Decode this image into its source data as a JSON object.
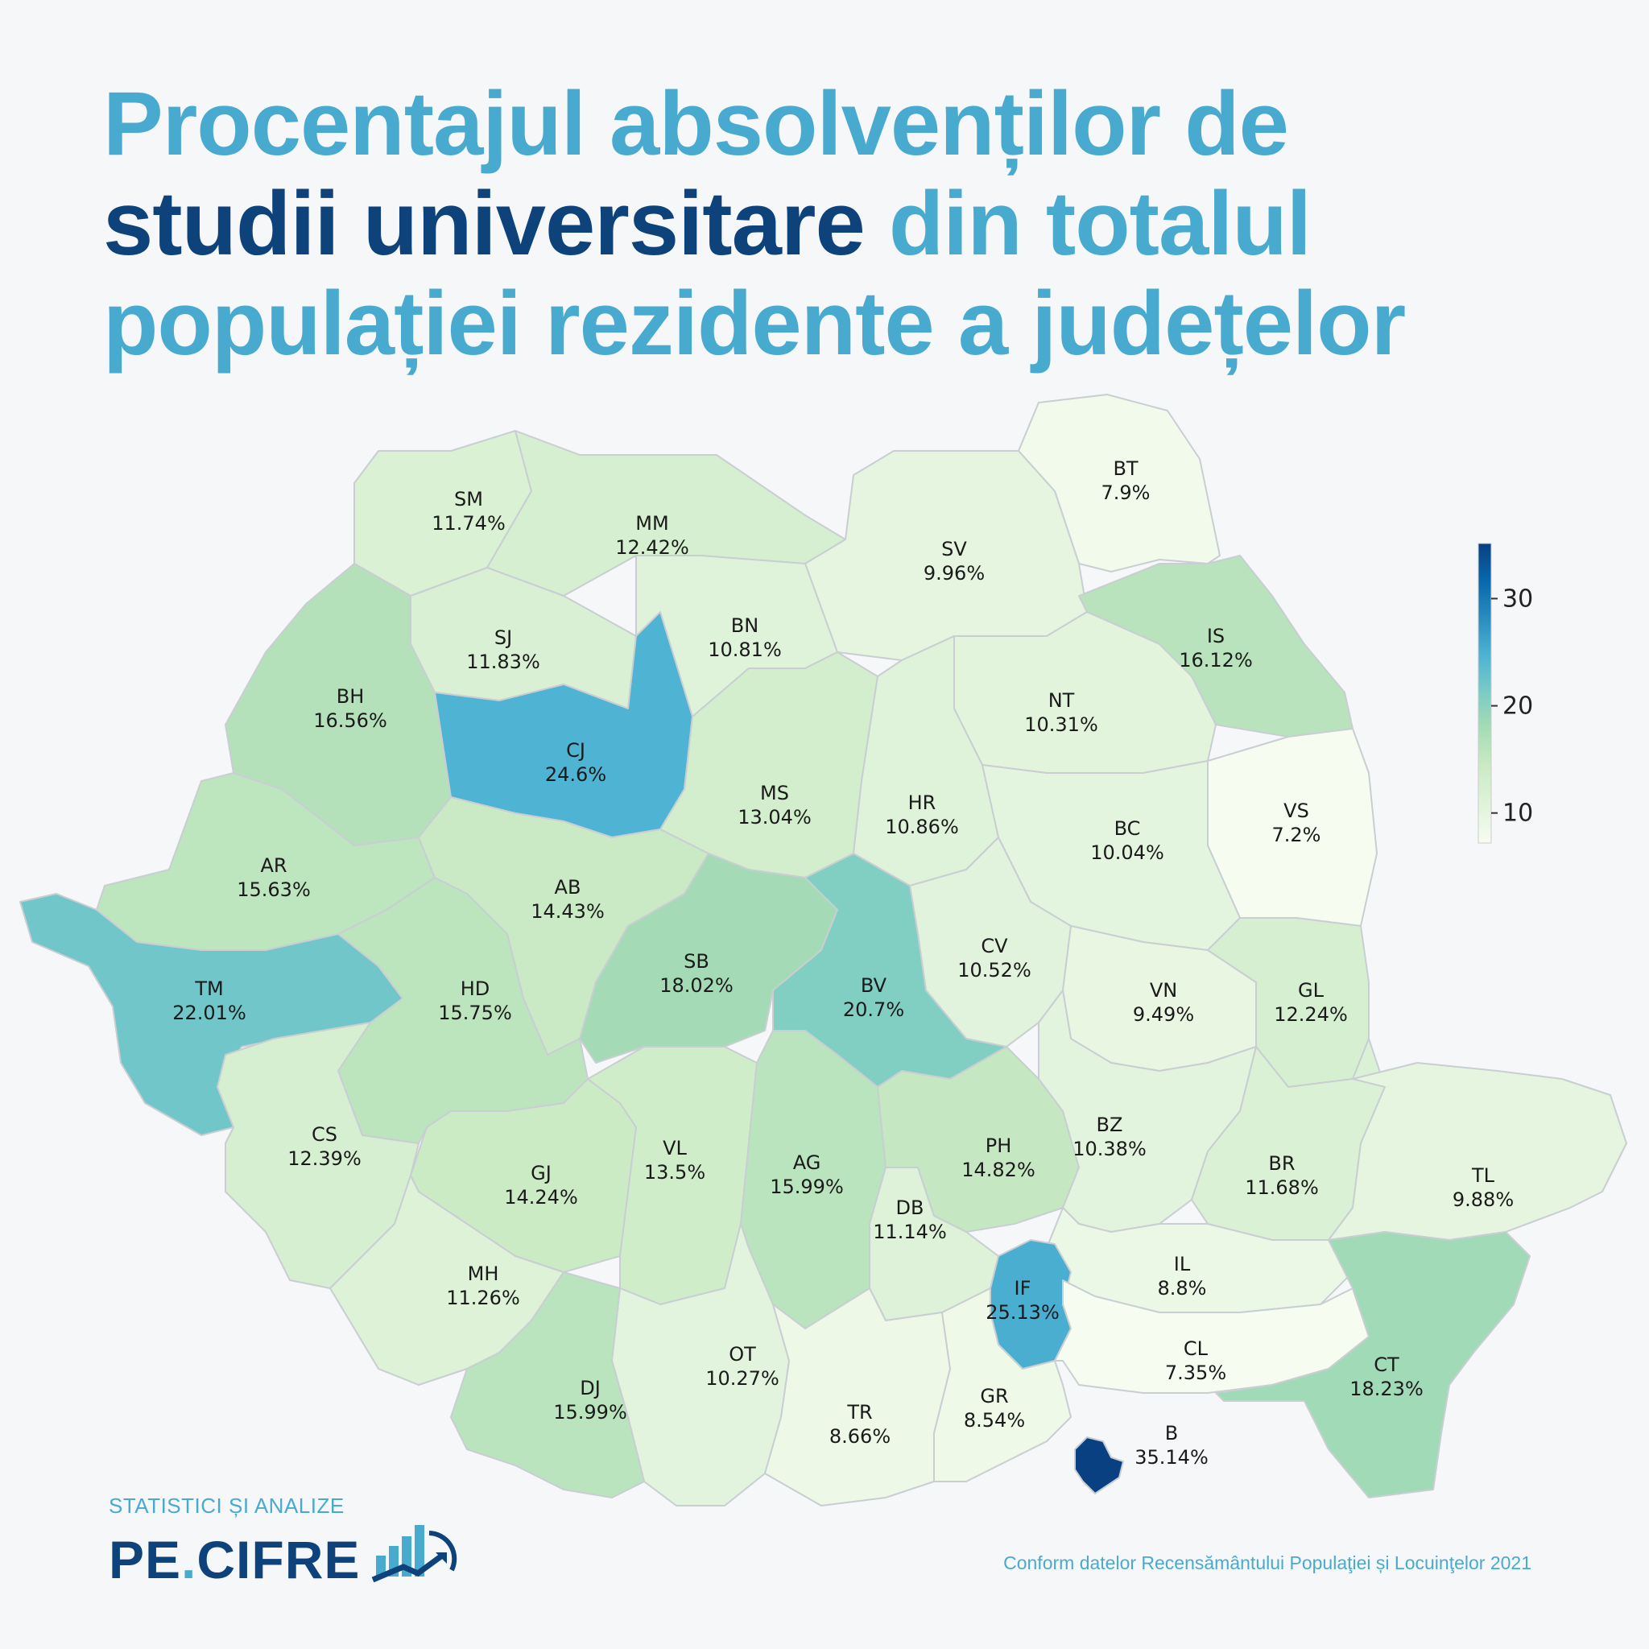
{
  "title": {
    "part1": "Procentajul absolvenților de",
    "part2_dark": "studii universitare",
    "part3": " din totalul",
    "part4": "populației rezidente a județelor"
  },
  "chart_data": {
    "type": "heatmap",
    "subtype": "choropleth",
    "value_unit": "%",
    "colorbar": {
      "ticks": [
        10,
        20,
        30
      ],
      "range": [
        7.2,
        35.14
      ],
      "placement": "right"
    },
    "regions": [
      {
        "code": "SM",
        "value": 11.74,
        "label": "11.74%"
      },
      {
        "code": "MM",
        "value": 12.42,
        "label": "12.42%"
      },
      {
        "code": "BT",
        "value": 7.9,
        "label": "7.9%"
      },
      {
        "code": "SV",
        "value": 9.96,
        "label": "9.96%"
      },
      {
        "code": "IS",
        "value": 16.12,
        "label": "16.12%"
      },
      {
        "code": "SJ",
        "value": 11.83,
        "label": "11.83%"
      },
      {
        "code": "BN",
        "value": 10.81,
        "label": "10.81%"
      },
      {
        "code": "NT",
        "value": 10.31,
        "label": "10.31%"
      },
      {
        "code": "BH",
        "value": 16.56,
        "label": "16.56%"
      },
      {
        "code": "CJ",
        "value": 24.6,
        "label": "24.6%"
      },
      {
        "code": "MS",
        "value": 13.04,
        "label": "13.04%"
      },
      {
        "code": "HR",
        "value": 10.86,
        "label": "10.86%"
      },
      {
        "code": "VS",
        "value": 7.2,
        "label": "7.2%"
      },
      {
        "code": "BC",
        "value": 10.04,
        "label": "10.04%"
      },
      {
        "code": "AR",
        "value": 15.63,
        "label": "15.63%"
      },
      {
        "code": "AB",
        "value": 14.43,
        "label": "14.43%"
      },
      {
        "code": "CV",
        "value": 10.52,
        "label": "10.52%"
      },
      {
        "code": "TM",
        "value": 22.01,
        "label": "22.01%"
      },
      {
        "code": "HD",
        "value": 15.75,
        "label": "15.75%"
      },
      {
        "code": "SB",
        "value": 18.02,
        "label": "18.02%"
      },
      {
        "code": "BV",
        "value": 20.7,
        "label": "20.7%"
      },
      {
        "code": "VN",
        "value": 9.49,
        "label": "9.49%"
      },
      {
        "code": "GL",
        "value": 12.24,
        "label": "12.24%"
      },
      {
        "code": "CS",
        "value": 12.39,
        "label": "12.39%"
      },
      {
        "code": "GJ",
        "value": 14.24,
        "label": "14.24%"
      },
      {
        "code": "VL",
        "value": 13.5,
        "label": "13.5%"
      },
      {
        "code": "AG",
        "value": 15.99,
        "label": "15.99%"
      },
      {
        "code": "PH",
        "value": 14.82,
        "label": "14.82%"
      },
      {
        "code": "BZ",
        "value": 10.38,
        "label": "10.38%"
      },
      {
        "code": "BR",
        "value": 11.68,
        "label": "11.68%"
      },
      {
        "code": "TL",
        "value": 9.88,
        "label": "9.88%"
      },
      {
        "code": "DB",
        "value": 11.14,
        "label": "11.14%"
      },
      {
        "code": "IL",
        "value": 8.8,
        "label": "8.8%"
      },
      {
        "code": "MH",
        "value": 11.26,
        "label": "11.26%"
      },
      {
        "code": "IF",
        "value": 25.13,
        "label": "25.13%"
      },
      {
        "code": "CL",
        "value": 7.35,
        "label": "7.35%"
      },
      {
        "code": "CT",
        "value": 18.23,
        "label": "18.23%"
      },
      {
        "code": "OT",
        "value": 10.27,
        "label": "10.27%"
      },
      {
        "code": "DJ",
        "value": 15.99,
        "label": "15.99%"
      },
      {
        "code": "TR",
        "value": 8.66,
        "label": "8.66%"
      },
      {
        "code": "GR",
        "value": 8.54,
        "label": "8.54%"
      },
      {
        "code": "B",
        "value": 35.14,
        "label": "35.14%"
      }
    ]
  },
  "logo": {
    "top": "STATISTICI ȘI ANALIZE",
    "main_left": "PE",
    "main_dot": ".",
    "main_right": "CIFRE"
  },
  "source": "Conform datelor Recensământului Populaţiei și Locuinţelor 2021"
}
